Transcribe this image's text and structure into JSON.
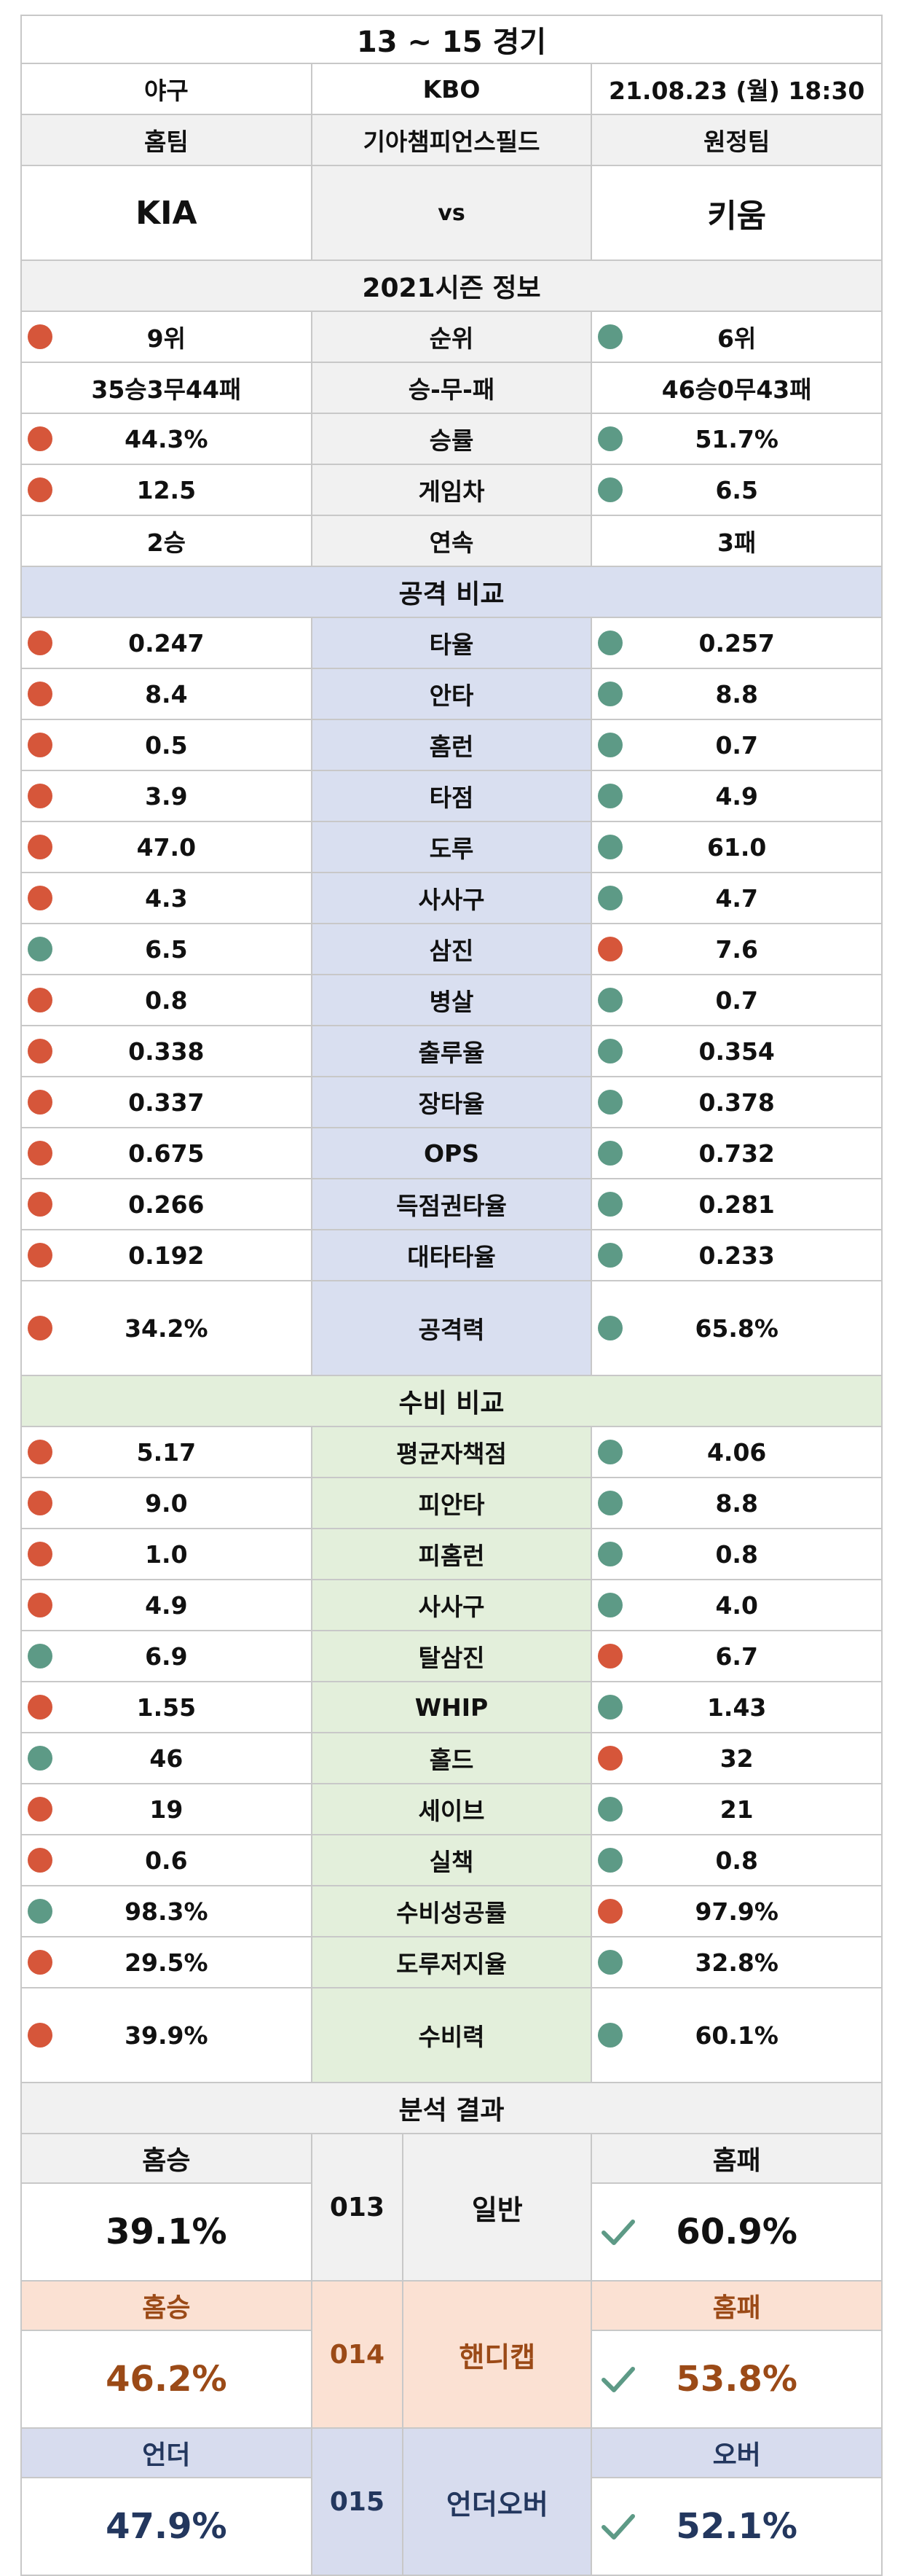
{
  "header": {
    "title": "13 ~ 15 경기",
    "sport": "야구",
    "league": "KBO",
    "datetime": "21.08.23 (월) 18:30",
    "home_label": "홈팀",
    "venue": "기아챔피언스필드",
    "away_label": "원정팀",
    "home_team": "KIA",
    "vs": "vs",
    "away_team": "키움"
  },
  "season": {
    "title": "2021시즌 정보",
    "rows": [
      {
        "label": "순위",
        "home": "9위",
        "away": "6위",
        "home_dot": "red",
        "away_dot": "green"
      },
      {
        "label": "승-무-패",
        "home": "35승3무44패",
        "away": "46승0무43패",
        "home_dot": "",
        "away_dot": ""
      },
      {
        "label": "승률",
        "home": "44.3%",
        "away": "51.7%",
        "home_dot": "red",
        "away_dot": "green"
      },
      {
        "label": "게임차",
        "home": "12.5",
        "away": "6.5",
        "home_dot": "red",
        "away_dot": "green"
      },
      {
        "label": "연속",
        "home": "2승",
        "away": "3패",
        "home_dot": "",
        "away_dot": ""
      }
    ]
  },
  "offense": {
    "title": "공격 비교",
    "rows": [
      {
        "label": "타율",
        "home": "0.247",
        "away": "0.257",
        "home_dot": "red",
        "away_dot": "green"
      },
      {
        "label": "안타",
        "home": "8.4",
        "away": "8.8",
        "home_dot": "red",
        "away_dot": "green"
      },
      {
        "label": "홈런",
        "home": "0.5",
        "away": "0.7",
        "home_dot": "red",
        "away_dot": "green"
      },
      {
        "label": "타점",
        "home": "3.9",
        "away": "4.9",
        "home_dot": "red",
        "away_dot": "green"
      },
      {
        "label": "도루",
        "home": "47.0",
        "away": "61.0",
        "home_dot": "red",
        "away_dot": "green"
      },
      {
        "label": "사사구",
        "home": "4.3",
        "away": "4.7",
        "home_dot": "red",
        "away_dot": "green"
      },
      {
        "label": "삼진",
        "home": "6.5",
        "away": "7.6",
        "home_dot": "green",
        "away_dot": "red"
      },
      {
        "label": "병살",
        "home": "0.8",
        "away": "0.7",
        "home_dot": "red",
        "away_dot": "green"
      },
      {
        "label": "출루율",
        "home": "0.338",
        "away": "0.354",
        "home_dot": "red",
        "away_dot": "green"
      },
      {
        "label": "장타율",
        "home": "0.337",
        "away": "0.378",
        "home_dot": "red",
        "away_dot": "green"
      },
      {
        "label": "OPS",
        "home": "0.675",
        "away": "0.732",
        "home_dot": "red",
        "away_dot": "green"
      },
      {
        "label": "득점권타율",
        "home": "0.266",
        "away": "0.281",
        "home_dot": "red",
        "away_dot": "green"
      },
      {
        "label": "대타타율",
        "home": "0.192",
        "away": "0.233",
        "home_dot": "red",
        "away_dot": "green"
      }
    ],
    "total": {
      "label": "공격력",
      "home": "34.2%",
      "away": "65.8%",
      "home_dot": "red",
      "away_dot": "green"
    }
  },
  "defense": {
    "title": "수비 비교",
    "rows": [
      {
        "label": "평균자책점",
        "home": "5.17",
        "away": "4.06",
        "home_dot": "red",
        "away_dot": "green"
      },
      {
        "label": "피안타",
        "home": "9.0",
        "away": "8.8",
        "home_dot": "red",
        "away_dot": "green"
      },
      {
        "label": "피홈런",
        "home": "1.0",
        "away": "0.8",
        "home_dot": "red",
        "away_dot": "green"
      },
      {
        "label": "사사구",
        "home": "4.9",
        "away": "4.0",
        "home_dot": "red",
        "away_dot": "green"
      },
      {
        "label": "탈삼진",
        "home": "6.9",
        "away": "6.7",
        "home_dot": "green",
        "away_dot": "red"
      },
      {
        "label": "WHIP",
        "home": "1.55",
        "away": "1.43",
        "home_dot": "red",
        "away_dot": "green"
      },
      {
        "label": "홀드",
        "home": "46",
        "away": "32",
        "home_dot": "green",
        "away_dot": "red"
      },
      {
        "label": "세이브",
        "home": "19",
        "away": "21",
        "home_dot": "red",
        "away_dot": "green"
      },
      {
        "label": "실책",
        "home": "0.6",
        "away": "0.8",
        "home_dot": "red",
        "away_dot": "green"
      },
      {
        "label": "수비성공률",
        "home": "98.3%",
        "away": "97.9%",
        "home_dot": "green",
        "away_dot": "red"
      },
      {
        "label": "도루저지율",
        "home": "29.5%",
        "away": "32.8%",
        "home_dot": "red",
        "away_dot": "green"
      }
    ],
    "total": {
      "label": "수비력",
      "home": "39.9%",
      "away": "60.1%",
      "home_dot": "red",
      "away_dot": "green"
    }
  },
  "analysis": {
    "title": "분석 결과",
    "items": [
      {
        "code": "013",
        "kind": "일반",
        "left_label": "홈승",
        "left_value": "39.1%",
        "right_label": "홈패",
        "right_value": "60.9%",
        "pick": "right",
        "theme": "gray"
      },
      {
        "code": "014",
        "kind": "핸디캡",
        "left_label": "홈승",
        "left_value": "46.2%",
        "right_label": "홈패",
        "right_value": "53.8%",
        "pick": "right",
        "theme": "peach"
      },
      {
        "code": "015",
        "kind": "언더오버",
        "left_label": "언더",
        "left_value": "47.9%",
        "right_label": "오버",
        "right_value": "52.1%",
        "pick": "right",
        "theme": "lav"
      }
    ]
  },
  "colors": {
    "dot_red": "#d6563a",
    "dot_green": "#5d9a86",
    "check": "#5d9a86"
  }
}
